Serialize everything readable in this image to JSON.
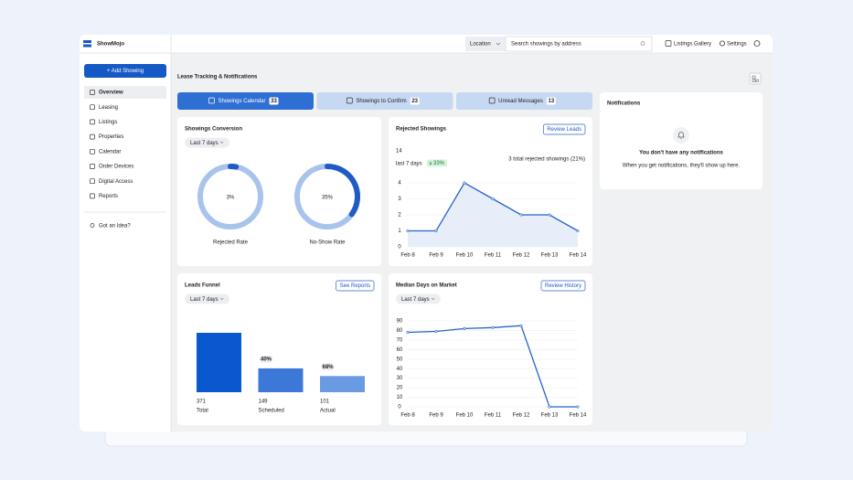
{
  "brand": "ShowMojo",
  "topbar": {
    "location": "Location",
    "search_placeholder": "Search showings by address",
    "links": [
      "Listings Gallery",
      "Settings"
    ]
  },
  "sidebar": {
    "button": "+ Add Showing",
    "nav": [
      "Overview",
      "Leasing",
      "Listings",
      "Properties",
      "Calendar",
      "Order Devices",
      "Digital Access",
      "Reports"
    ],
    "idea": "Got an Idea?"
  },
  "page_title": "Lease Tracking & Notifications",
  "tabs": [
    {
      "label": "Showings Calendar",
      "count": 33
    },
    {
      "label": "Showings to Confirm",
      "count": 23
    },
    {
      "label": "Unread Messages",
      "count": 13
    }
  ],
  "notifications": {
    "title": "Notifications",
    "empty_title": "You don't have any notifications",
    "empty_text": "When you get notifications, they'll show up here."
  },
  "chart_data": [
    {
      "type": "donut",
      "title": "Showings Conversion",
      "filter": "Last 7 days",
      "categories": [
        "Rejected Rate",
        "No-Show Rate"
      ],
      "values": [
        3,
        35
      ],
      "value_labels": [
        "3%",
        "35%"
      ],
      "ylim": [
        0,
        100
      ],
      "color": "#1f5bc4",
      "track_color": "#a9c4ec"
    },
    {
      "type": "area",
      "title": "Rejected Showings",
      "button": "Review Leads",
      "total": 14,
      "total_label": "last 7 days",
      "change": "33%",
      "summary": "3 total rejected showings (21%)",
      "x": [
        "Feb 8",
        "Feb 9",
        "Feb 10",
        "Feb 11",
        "Feb 12",
        "Feb 13",
        "Feb 14"
      ],
      "values": [
        1,
        1,
        4,
        3,
        2,
        2,
        1
      ],
      "ylim": [
        0,
        4
      ],
      "yticks": [
        0,
        1,
        2,
        3,
        4
      ],
      "grid": true,
      "color": "#2563c9"
    },
    {
      "type": "bar",
      "title": "Leads Funnel",
      "button": "See Reports",
      "filter": "Last 7 days",
      "categories": [
        "Total",
        "Scheduled",
        "Actual"
      ],
      "values": [
        371,
        149,
        101
      ],
      "step_rates": [
        "40%",
        "68%"
      ],
      "colors": [
        "#0b57d0",
        "#3b78d8",
        "#6a9be2"
      ]
    },
    {
      "type": "line",
      "title": "Median Days on Market",
      "button": "Review History",
      "filter": "Last 7 days",
      "x": [
        "Feb 8",
        "Feb 9",
        "Feb 10",
        "Feb 11",
        "Feb 12",
        "Feb 13",
        "Feb 14"
      ],
      "values": [
        78,
        79,
        82,
        83,
        85,
        0,
        0
      ],
      "ylim": [
        0,
        90
      ],
      "yticks": [
        0,
        10,
        20,
        30,
        40,
        50,
        60,
        70,
        80,
        90
      ],
      "grid": true,
      "color": "#2563c9"
    }
  ]
}
